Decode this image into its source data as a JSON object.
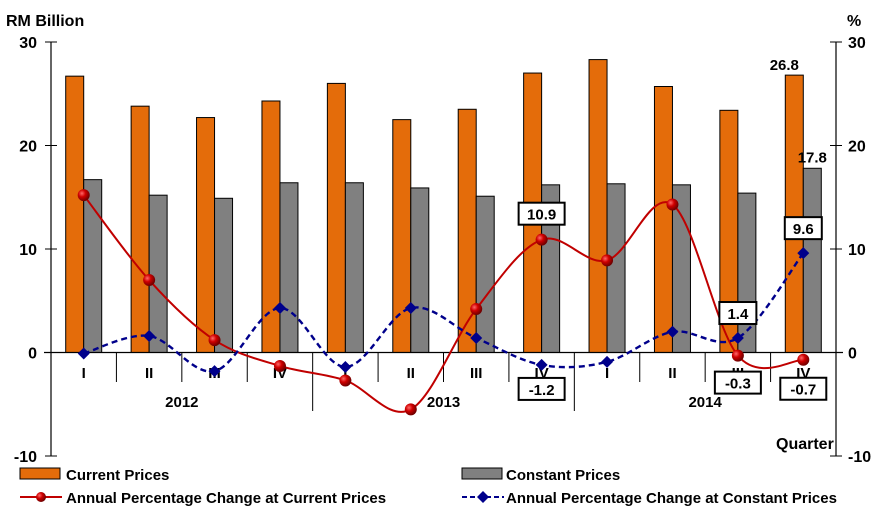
{
  "chart_data": {
    "type": "bar",
    "left_axis_label": "RM Billion",
    "right_axis_label": "%",
    "xlabel": "Quarter",
    "ylim_left": [
      -10,
      30
    ],
    "ylim_right": [
      -10,
      30
    ],
    "yticks_left": [
      30,
      20,
      10,
      0,
      -10
    ],
    "yticks_right": [
      30,
      20,
      10,
      0,
      -10
    ],
    "grid": false,
    "legend_position": "bottom",
    "years": [
      "2012",
      "2013",
      "2014"
    ],
    "categories": [
      "I",
      "II",
      "III",
      "IV",
      "I",
      "II",
      "III",
      "IV",
      "I",
      "II",
      "III",
      "IV"
    ],
    "series": [
      {
        "name": "Current Prices",
        "kind": "bar",
        "axis": "left",
        "color": "#E46C0A",
        "values": [
          26.7,
          23.8,
          22.7,
          24.3,
          26.0,
          22.5,
          23.5,
          27.0,
          28.3,
          25.7,
          23.4,
          26.8
        ]
      },
      {
        "name": "Constant Prices",
        "kind": "bar",
        "axis": "left",
        "color": "#808080",
        "values": [
          16.7,
          15.2,
          14.9,
          16.4,
          16.4,
          15.9,
          15.1,
          16.2,
          16.3,
          16.2,
          15.4,
          17.8
        ]
      },
      {
        "name": "Annual Percentage Change at Current Prices",
        "kind": "line",
        "axis": "right",
        "color": "#C00000",
        "marker": "circle",
        "values": [
          15.2,
          7.0,
          1.2,
          -1.3,
          -2.7,
          -5.5,
          4.2,
          10.9,
          8.9,
          14.3,
          -0.3,
          -0.7
        ]
      },
      {
        "name": "Annual Percentage Change at Constant Prices",
        "kind": "line",
        "axis": "right",
        "color": "#00008B",
        "marker": "diamond",
        "dashed": true,
        "values": [
          -0.1,
          1.6,
          -1.8,
          4.3,
          -1.4,
          4.3,
          1.4,
          -1.2,
          -0.9,
          2.0,
          1.4,
          9.6
        ]
      }
    ],
    "annotations": [
      {
        "series": 0,
        "index": 11,
        "text": "26.8",
        "boxed": false
      },
      {
        "series": 1,
        "index": 11,
        "text": "17.8",
        "boxed": false
      },
      {
        "series": 2,
        "index": 7,
        "text": "10.9",
        "boxed": true
      },
      {
        "series": 3,
        "index": 7,
        "text": "-1.2",
        "boxed": true
      },
      {
        "series": 3,
        "index": 10,
        "text": "1.4",
        "boxed": true
      },
      {
        "series": 2,
        "index": 10,
        "text": "-0.3",
        "boxed": true
      },
      {
        "series": 3,
        "index": 11,
        "text": "9.6",
        "boxed": true
      },
      {
        "series": 2,
        "index": 11,
        "text": "-0.7",
        "boxed": true
      }
    ]
  }
}
